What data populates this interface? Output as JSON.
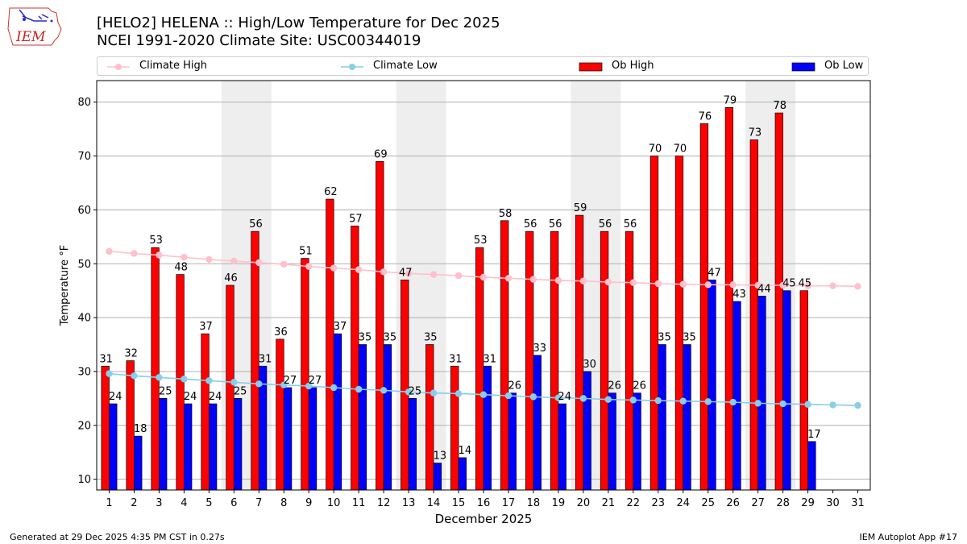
{
  "header": {
    "logo_text": "IEM",
    "title_line1": "[HELO2] HELENA :: High/Low Temperature for Dec 2025",
    "title_line2": "NCEI 1991-2020 Climate Site: USC00344019"
  },
  "legend": [
    {
      "label": "Climate High",
      "kind": "line",
      "color": "#ffc0cb"
    },
    {
      "label": "Climate Low",
      "kind": "line",
      "color": "#87ceeb"
    },
    {
      "label": "Ob High",
      "kind": "bar",
      "color": "#ff0000"
    },
    {
      "label": "Ob Low",
      "kind": "bar",
      "color": "#0000ff"
    }
  ],
  "footer": {
    "generated": "Generated at 29 Dec 2025 4:35 PM CST in 0.27s",
    "app": "IEM Autoplot App #17"
  },
  "chart_data": {
    "type": "bar",
    "title": "[HELO2] HELENA :: High/Low Temperature for Dec 2025",
    "subtitle": "NCEI 1991-2020 Climate Site: USC00344019",
    "xlabel": "December 2025",
    "ylabel": "Temperature °F",
    "ylim": [
      8,
      84
    ],
    "yticks": [
      10,
      20,
      30,
      40,
      50,
      60,
      70,
      80
    ],
    "grid": "horizontal",
    "legend_position": "top",
    "days": [
      1,
      2,
      3,
      4,
      5,
      6,
      7,
      8,
      9,
      10,
      11,
      12,
      13,
      14,
      15,
      16,
      17,
      18,
      19,
      20,
      21,
      22,
      23,
      24,
      25,
      26,
      27,
      28,
      29,
      30,
      31
    ],
    "weekend_shading": [
      [
        6,
        7
      ],
      [
        13,
        14
      ],
      [
        20,
        21
      ],
      [
        27,
        28
      ]
    ],
    "series": [
      {
        "name": "Ob High",
        "type": "bar",
        "color": "#ff0000",
        "values": [
          31,
          32,
          53,
          48,
          37,
          46,
          56,
          36,
          51,
          62,
          57,
          69,
          47,
          35,
          31,
          53,
          58,
          56,
          56,
          59,
          56,
          56,
          70,
          70,
          76,
          79,
          73,
          78,
          45
        ]
      },
      {
        "name": "Ob Low",
        "type": "bar",
        "color": "#0000ff",
        "values": [
          24,
          18,
          25,
          24,
          24,
          25,
          31,
          27,
          27,
          37,
          35,
          35,
          25,
          13,
          14,
          31,
          26,
          33,
          24,
          30,
          26,
          26,
          35,
          35,
          47,
          43,
          44,
          45,
          17
        ]
      },
      {
        "name": "Climate High",
        "type": "line",
        "color": "#ffc0cb",
        "values": [
          52.3,
          51.9,
          51.6,
          51.2,
          50.8,
          50.5,
          50.2,
          49.9,
          49.5,
          49.2,
          48.9,
          48.5,
          48.2,
          48.0,
          47.8,
          47.5,
          47.3,
          47.1,
          46.9,
          46.8,
          46.6,
          46.5,
          46.3,
          46.2,
          46.1,
          46.1,
          46.0,
          46.0,
          45.9,
          45.9,
          45.8
        ]
      },
      {
        "name": "Climate Low",
        "type": "line",
        "color": "#87ceeb",
        "values": [
          29.6,
          29.2,
          28.9,
          28.6,
          28.3,
          28.0,
          27.7,
          27.5,
          27.3,
          27.0,
          26.7,
          26.5,
          26.2,
          26.0,
          25.9,
          25.7,
          25.5,
          25.3,
          25.1,
          25.0,
          24.8,
          24.7,
          24.6,
          24.5,
          24.4,
          24.3,
          24.1,
          24.0,
          23.9,
          23.8,
          23.7
        ]
      }
    ]
  }
}
